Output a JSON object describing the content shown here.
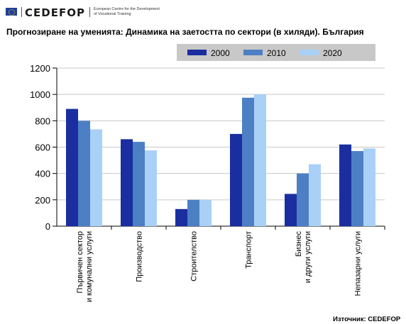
{
  "header": {
    "logo_text": "CEDEFOP",
    "org_line1": "European Centre for the Development",
    "org_line2": "of Vocational Training"
  },
  "source_text": "Източник: CEDEFOP",
  "colors": {
    "series_2000": "#1a2ea0",
    "series_2010": "#4d7fc4",
    "series_2020": "#a9d0f7",
    "legend_bg": "#c8c8c8",
    "grid": "#c8c8c8"
  },
  "chart_data": {
    "type": "bar",
    "title": "Прогнозиране на уменията: Динамика на заетостта по сектори (в хиляди). България",
    "xlabel": "",
    "ylabel": "",
    "ylim": [
      0,
      1200
    ],
    "yticks": [
      0,
      200,
      400,
      600,
      800,
      1000,
      1200
    ],
    "ytick_labels": [
      "0",
      "200",
      "400",
      "600",
      "800",
      "1000",
      "1200"
    ],
    "grid": true,
    "legend_position": "top-right",
    "categories": [
      [
        "Първичен сектор",
        "и комунални услуги"
      ],
      [
        "Производство"
      ],
      [
        "Строителство"
      ],
      [
        "Транспорт"
      ],
      [
        "Бизнес",
        "и други услуги"
      ],
      [
        "Непазарни услуги"
      ]
    ],
    "series": [
      {
        "name": "2000",
        "values": [
          890,
          660,
          130,
          700,
          245,
          620
        ]
      },
      {
        "name": "2010",
        "values": [
          800,
          640,
          200,
          975,
          400,
          570
        ]
      },
      {
        "name": "2020",
        "values": [
          735,
          575,
          200,
          1000,
          470,
          590
        ]
      }
    ]
  }
}
